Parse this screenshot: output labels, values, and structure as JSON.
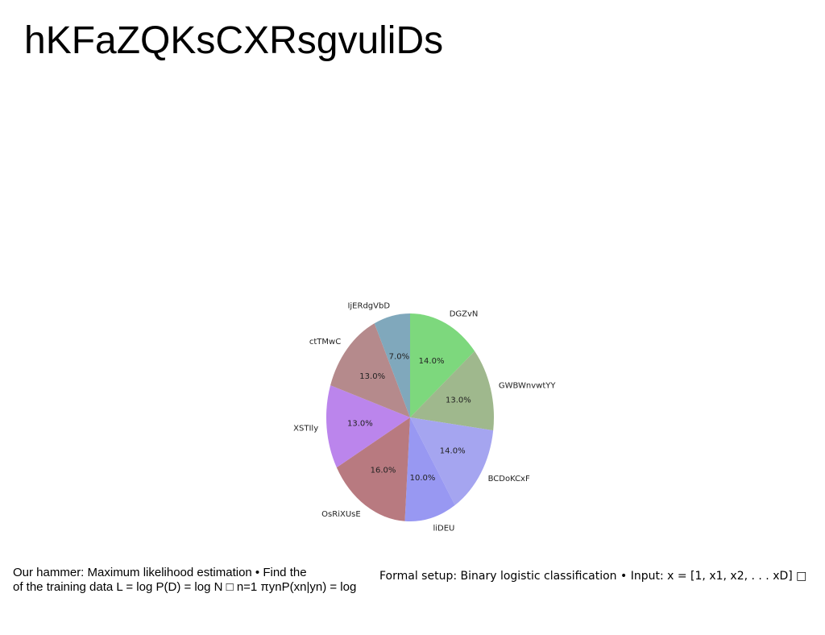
{
  "page": {
    "title": "hKFaZQKsCXRsgvuliDs"
  },
  "captions": {
    "left_line1": "Our hammer: Maximum likelihood estimation • Find the",
    "left_line2": "of the training data L = log P(D) = log N □ n=1 πynP(xn|yn) = log",
    "right": "Formal setup: Binary logistic classification • Input: x = [1, x1, x2, . . . xD] □"
  },
  "chart_data": {
    "type": "pie",
    "start_angle_deg": 90,
    "direction": "clockwise",
    "slices": [
      {
        "label": "DGZvN",
        "value": 14.0,
        "pct_label": "14.0%",
        "color": "#7dd87d"
      },
      {
        "label": "GWBWnvwtYY",
        "value": 13.0,
        "pct_label": "13.0%",
        "color": "#9fb88d"
      },
      {
        "label": "BCDoKCxF",
        "value": 14.0,
        "pct_label": "14.0%",
        "color": "#a5a5f0"
      },
      {
        "label": "liDEU",
        "value": 10.0,
        "pct_label": "10.0%",
        "color": "#9898f2"
      },
      {
        "label": "OsRiXUsE",
        "value": 16.0,
        "pct_label": "16.0%",
        "color": "#b87a80"
      },
      {
        "label": "XSTIly",
        "value": 13.0,
        "pct_label": "13.0%",
        "color": "#bb85ec"
      },
      {
        "label": "ctTMwC",
        "value": 13.0,
        "pct_label": "13.0%",
        "color": "#b58a8c"
      },
      {
        "label": "IjERdgVbD",
        "value": 7.0,
        "pct_label": "7.0%",
        "color": "#80a8bc"
      }
    ]
  }
}
